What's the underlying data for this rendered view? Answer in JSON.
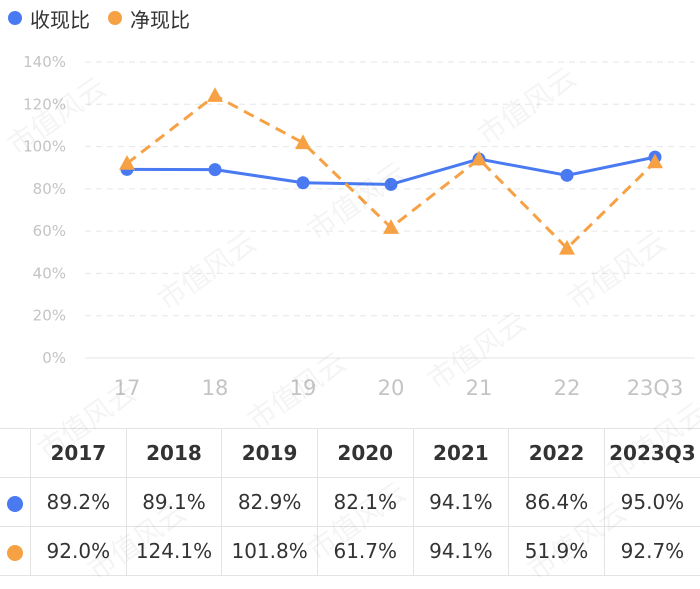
{
  "legend": [
    {
      "label": "收现比",
      "color": "#4a7af2"
    },
    {
      "label": "净现比",
      "color": "#f7a145"
    }
  ],
  "watermark": "市值风云",
  "chart_data": {
    "type": "line",
    "categories": [
      "17",
      "18",
      "19",
      "20",
      "21",
      "22",
      "23Q3"
    ],
    "ylim": [
      0,
      140
    ],
    "yticks": [
      "0%",
      "20%",
      "40%",
      "60%",
      "80%",
      "100%",
      "120%",
      "140%"
    ],
    "grid": true,
    "legend_position": "top-left",
    "series": [
      {
        "name": "收现比",
        "values": [
          89.2,
          89.1,
          82.9,
          82.1,
          94.1,
          86.4,
          95.0
        ],
        "color": "#4a7af2",
        "style": "solid",
        "marker": "circle"
      },
      {
        "name": "净现比",
        "values": [
          92.0,
          124.1,
          101.8,
          61.7,
          94.1,
          51.9,
          92.7
        ],
        "color": "#f7a145",
        "style": "dashed",
        "marker": "triangle"
      }
    ]
  },
  "table": {
    "headers": [
      "2017",
      "2018",
      "2019",
      "2020",
      "2021",
      "2022",
      "2023Q3"
    ],
    "rows": [
      {
        "color": "#4a7af2",
        "values": [
          "89.2%",
          "89.1%",
          "82.9%",
          "82.1%",
          "94.1%",
          "86.4%",
          "95.0%"
        ]
      },
      {
        "color": "#f7a145",
        "values": [
          "92.0%",
          "124.1%",
          "101.8%",
          "61.7%",
          "94.1%",
          "51.9%",
          "92.7%"
        ]
      }
    ]
  }
}
